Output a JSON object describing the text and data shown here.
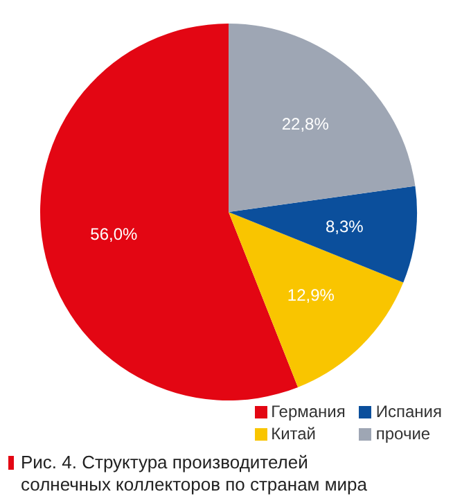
{
  "chart_data": {
    "type": "pie",
    "title": "Рис. 4. Структура производителей солнечных коллекторов по странам мира",
    "categories": [
      "Германия",
      "Китай",
      "Испания",
      "прочие"
    ],
    "values": [
      56.0,
      12.9,
      8.3,
      22.8
    ],
    "colors": [
      "#e30613",
      "#f9c500",
      "#0b4f9c",
      "#9ea6b4"
    ],
    "value_labels": [
      "56,0%",
      "12,9%",
      "8,3%",
      "22,8%"
    ],
    "legend": "bottom right"
  }
}
